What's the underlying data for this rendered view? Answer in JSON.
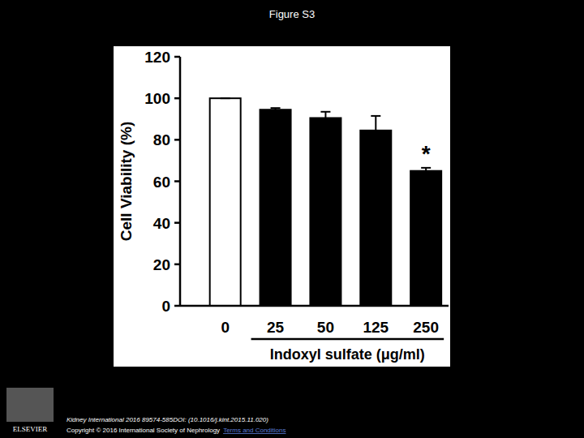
{
  "chart_data": {
    "type": "bar",
    "title": "Figure S3",
    "y_label": "Cell Viability (%)",
    "x_label": "Indoxyl sulfate (μg/ml)",
    "categories": [
      "0",
      "25",
      "50",
      "125",
      "250"
    ],
    "values": [
      100,
      94.5,
      90.5,
      84.5,
      65
    ],
    "errors": [
      0,
      0.8,
      3,
      7,
      1.5
    ],
    "colors": [
      "#ffffff",
      "#000000",
      "#000000",
      "#000000",
      "#000000"
    ],
    "ylim": [
      0,
      120
    ],
    "yticks": [
      0,
      20,
      40,
      60,
      80,
      100,
      120
    ],
    "annotations": [
      {
        "text": "*",
        "category": "250"
      }
    ]
  },
  "footer": {
    "citation": "Kidney International 2016 89574-585DOI: (10.1016/j.kint.2015.11.020)",
    "copyright": "Copyright © 2016 International Society of Nephrology",
    "link": "Terms and Conditions",
    "logo": "ELSEVIER"
  }
}
